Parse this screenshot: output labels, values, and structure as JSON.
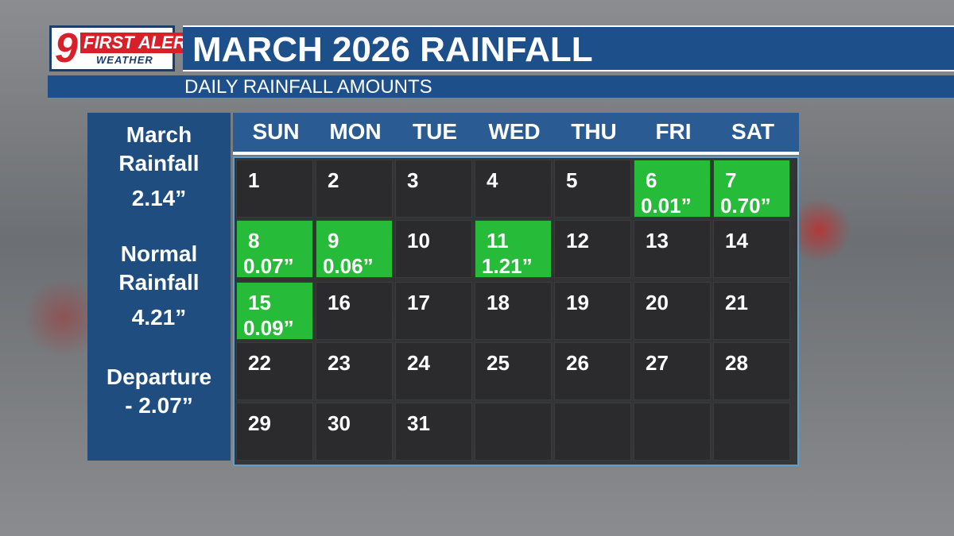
{
  "logo": {
    "number": "9",
    "brand": "FIRST ALERT",
    "sub": "WEATHER"
  },
  "header": {
    "title": "MARCH 2026 RAINFALL",
    "subtitle": "DAILY RAINFALL AMOUNTS"
  },
  "sidebar": [
    {
      "label": "March Rainfall",
      "value": "2.14”"
    },
    {
      "label": "Normal Rainfall",
      "value": "4.21”"
    },
    {
      "label": "Departure",
      "value": "- 2.07”"
    }
  ],
  "calendar": {
    "weekdays": [
      "SUN",
      "MON",
      "TUE",
      "WED",
      "THU",
      "FRI",
      "SAT"
    ],
    "weeks": [
      [
        {
          "day": 1
        },
        {
          "day": 2
        },
        {
          "day": 3
        },
        {
          "day": 4
        },
        {
          "day": 5
        },
        {
          "day": 6,
          "rain": "0.01”"
        },
        {
          "day": 7,
          "rain": "0.70”"
        }
      ],
      [
        {
          "day": 8,
          "rain": "0.07”"
        },
        {
          "day": 9,
          "rain": "0.06”"
        },
        {
          "day": 10
        },
        {
          "day": 11,
          "rain": "1.21”"
        },
        {
          "day": 12
        },
        {
          "day": 13
        },
        {
          "day": 14
        }
      ],
      [
        {
          "day": 15,
          "rain": "0.09”"
        },
        {
          "day": 16
        },
        {
          "day": 17
        },
        {
          "day": 18
        },
        {
          "day": 19
        },
        {
          "day": 20
        },
        {
          "day": 21
        }
      ],
      [
        {
          "day": 22
        },
        {
          "day": 23
        },
        {
          "day": 24
        },
        {
          "day": 25
        },
        {
          "day": 26
        },
        {
          "day": 27
        },
        {
          "day": 28
        }
      ],
      [
        {
          "day": 29
        },
        {
          "day": 30
        },
        {
          "day": 31
        }
      ]
    ]
  }
}
